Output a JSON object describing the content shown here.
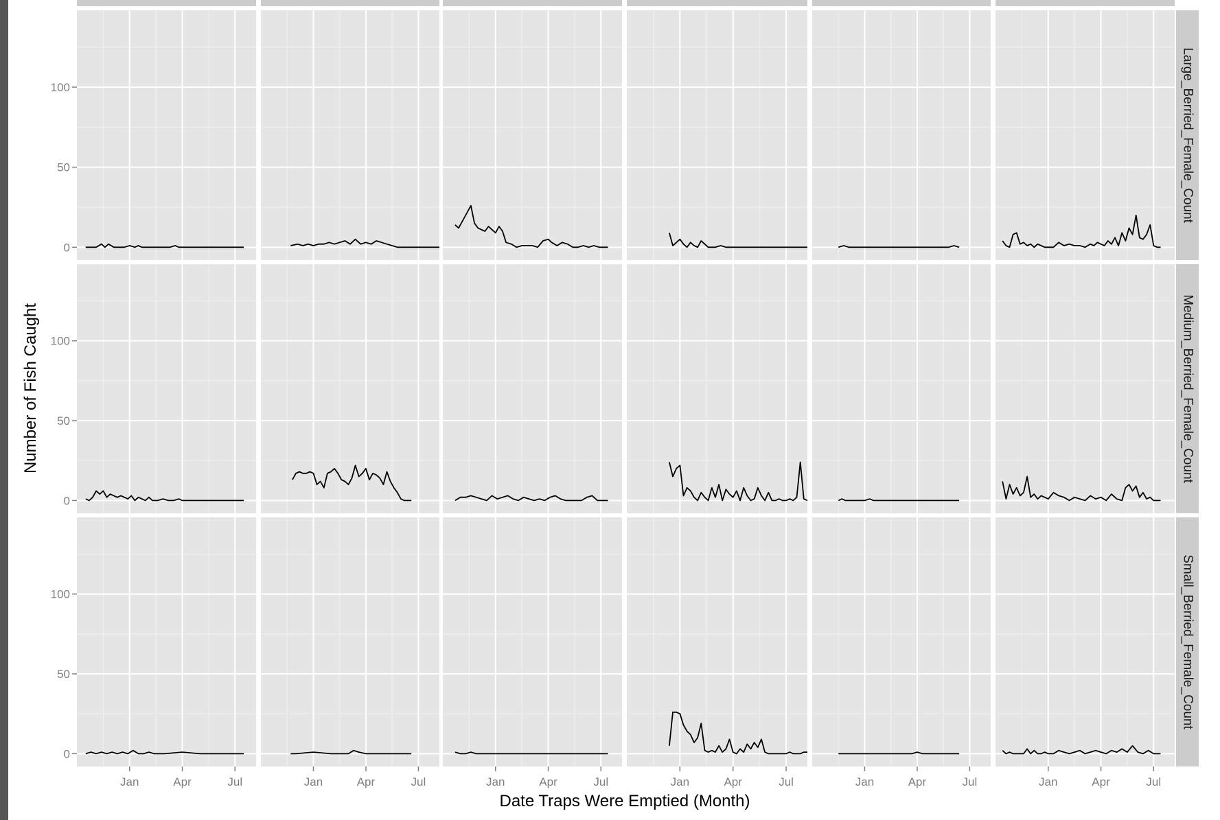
{
  "chart_data": {
    "type": "line",
    "layout": "facet-grid",
    "xlabel": "Date Traps Were Emptied (Month)",
    "ylabel": "Number of Fish Caught",
    "ylim": [
      -8,
      148
    ],
    "y_ticks": [
      0,
      50,
      100
    ],
    "x_ticks": [
      "Jan",
      "Apr",
      "Jul"
    ],
    "x_tick_positions_month": [
      0,
      3,
      6
    ],
    "xlim_month": [
      -3,
      7.2
    ],
    "column_strip_labels": [
      "",
      "",
      "",
      "",
      "",
      ""
    ],
    "row_strip_labels": [
      "Large_Berried_Female_Count",
      "Medium_Berried_Female_Count",
      "Small_Berried_Female_Count"
    ],
    "panels": [
      [
        {
          "x": [
            -2.5,
            -2.2,
            -1.9,
            -1.6,
            -1.4,
            -1.2,
            -0.9,
            -0.6,
            -0.3,
            0,
            0.3,
            0.5,
            0.7,
            1.0,
            1.3,
            1.6,
            2.0,
            2.3,
            2.6,
            2.8,
            3.0,
            4,
            5,
            6,
            6.5
          ],
          "y": [
            0,
            0,
            0,
            2,
            0,
            2,
            0,
            0,
            0,
            1,
            0,
            1,
            0,
            0,
            0,
            0,
            0,
            0,
            1,
            0,
            0,
            0,
            0,
            0,
            0
          ]
        },
        {
          "x": [
            -1.3,
            -0.9,
            -0.6,
            -0.3,
            0,
            0.3,
            0.6,
            0.9,
            1.2,
            1.5,
            1.8,
            2.1,
            2.4,
            2.7,
            3.0,
            3.3,
            3.6,
            3.9,
            4.2,
            4.5,
            4.8,
            5.1,
            5.4,
            5.7,
            6.0,
            6.3,
            6.6,
            6.9,
            7.2
          ],
          "y": [
            1,
            2,
            1,
            2,
            1,
            2,
            2,
            3,
            2,
            3,
            4,
            2,
            5,
            2,
            3,
            2,
            4,
            3,
            2,
            1,
            0,
            0,
            0,
            0,
            0,
            0,
            0,
            0,
            0
          ]
        },
        {
          "x": [
            -2.3,
            -2.1,
            -1.8,
            -1.6,
            -1.4,
            -1.2,
            -1.0,
            -0.8,
            -0.6,
            -0.4,
            -0.2,
            0,
            0.2,
            0.4,
            0.6,
            0.9,
            1.2,
            1.5,
            1.8,
            2.1,
            2.4,
            2.7,
            3.0,
            3.2,
            3.5,
            3.8,
            4.1,
            4.4,
            4.7,
            5.0,
            5.3,
            5.6,
            5.9,
            6.1,
            6.4
          ],
          "y": [
            14,
            12,
            18,
            22,
            26,
            15,
            12,
            11,
            10,
            13,
            11,
            9,
            13,
            10,
            3,
            2,
            0,
            1,
            1,
            1,
            0,
            4,
            5,
            3,
            1,
            3,
            2,
            0,
            0,
            1,
            0,
            1,
            0,
            0,
            0
          ]
        },
        {
          "x": [
            -0.6,
            -0.4,
            -0.2,
            0,
            0.2,
            0.4,
            0.6,
            0.8,
            1.0,
            1.2,
            1.4,
            1.6,
            1.8,
            2.0,
            2.3,
            2.6,
            3,
            4,
            5,
            6,
            7.2
          ],
          "y": [
            9,
            1,
            3,
            5,
            2,
            0,
            3,
            1,
            0,
            4,
            2,
            0,
            0,
            0,
            1,
            0,
            0,
            0,
            0,
            0,
            0
          ]
        },
        {
          "x": [
            -1.5,
            -1.2,
            -0.9,
            0,
            1,
            2,
            3,
            4,
            4.8,
            5.1,
            5.4
          ],
          "y": [
            0,
            1,
            0,
            0,
            0,
            0,
            0,
            0,
            0,
            1,
            0
          ]
        },
        {
          "x": [
            -2.6,
            -2.4,
            -2.2,
            -2.0,
            -1.8,
            -1.6,
            -1.4,
            -1.2,
            -1.0,
            -0.8,
            -0.6,
            -0.4,
            -0.2,
            0,
            0.3,
            0.6,
            0.9,
            1.2,
            1.5,
            1.8,
            2.1,
            2.4,
            2.6,
            2.8,
            3.0,
            3.2,
            3.4,
            3.6,
            3.8,
            4.0,
            4.2,
            4.4,
            4.6,
            4.8,
            5.0,
            5.2,
            5.4,
            5.6,
            5.8,
            6.0,
            6.2,
            6.4
          ],
          "y": [
            4,
            1,
            0,
            8,
            9,
            2,
            3,
            1,
            2,
            0,
            2,
            1,
            0,
            0,
            0,
            3,
            1,
            2,
            1,
            1,
            0,
            2,
            1,
            3,
            2,
            1,
            4,
            2,
            6,
            1,
            9,
            4,
            12,
            8,
            20,
            6,
            5,
            8,
            14,
            1,
            0,
            0
          ]
        }
      ],
      [
        {
          "x": [
            -2.5,
            -2.3,
            -2.1,
            -1.9,
            -1.7,
            -1.5,
            -1.3,
            -1.1,
            -0.9,
            -0.7,
            -0.5,
            -0.3,
            -0.1,
            0.1,
            0.3,
            0.5,
            0.7,
            0.9,
            1.1,
            1.3,
            1.6,
            1.9,
            2.2,
            2.5,
            2.8,
            3.0,
            4,
            5,
            6,
            6.5
          ],
          "y": [
            1,
            0,
            2,
            6,
            4,
            6,
            2,
            4,
            3,
            2,
            3,
            2,
            1,
            3,
            0,
            2,
            1,
            0,
            2,
            0,
            0,
            1,
            0,
            0,
            1,
            0,
            0,
            0,
            0,
            0
          ]
        },
        {
          "x": [
            -1.2,
            -1.0,
            -0.8,
            -0.6,
            -0.4,
            -0.2,
            0,
            0.2,
            0.4,
            0.6,
            0.8,
            1.0,
            1.2,
            1.4,
            1.6,
            1.8,
            2.0,
            2.2,
            2.4,
            2.6,
            2.8,
            3.0,
            3.2,
            3.4,
            3.6,
            3.8,
            4.0,
            4.2,
            4.4,
            4.6,
            4.8,
            5.0,
            5.2,
            5.4,
            5.6
          ],
          "y": [
            13,
            17,
            18,
            17,
            17,
            18,
            17,
            10,
            12,
            8,
            17,
            18,
            20,
            17,
            13,
            12,
            10,
            14,
            22,
            15,
            17,
            20,
            13,
            17,
            16,
            14,
            10,
            18,
            12,
            8,
            5,
            1,
            0,
            0,
            0
          ]
        },
        {
          "x": [
            -2.3,
            -2.0,
            -1.7,
            -1.4,
            -1.1,
            -0.8,
            -0.5,
            -0.2,
            0.1,
            0.4,
            0.7,
            1.0,
            1.3,
            1.6,
            1.9,
            2.2,
            2.5,
            2.8,
            3.1,
            3.4,
            3.7,
            4.0,
            4.3,
            4.6,
            4.9,
            5.2,
            5.5,
            5.8,
            6.1,
            6.4
          ],
          "y": [
            0,
            2,
            2,
            3,
            2,
            1,
            0,
            3,
            1,
            2,
            3,
            1,
            0,
            2,
            1,
            0,
            1,
            0,
            2,
            3,
            1,
            0,
            0,
            0,
            0,
            2,
            3,
            0,
            0,
            0
          ]
        },
        {
          "x": [
            -0.6,
            -0.4,
            -0.2,
            0,
            0.2,
            0.4,
            0.6,
            0.8,
            1.0,
            1.2,
            1.4,
            1.6,
            1.8,
            2.0,
            2.2,
            2.4,
            2.6,
            2.8,
            3.0,
            3.2,
            3.4,
            3.6,
            3.8,
            4.0,
            4.2,
            4.4,
            4.6,
            4.8,
            5.0,
            5.2,
            5.4,
            5.6,
            5.8,
            6.0,
            6.2,
            6.4,
            6.6,
            6.8,
            7.0,
            7.2
          ],
          "y": [
            24,
            15,
            20,
            22,
            3,
            8,
            6,
            2,
            0,
            5,
            2,
            0,
            8,
            2,
            10,
            0,
            7,
            4,
            2,
            6,
            0,
            8,
            3,
            0,
            1,
            8,
            3,
            0,
            5,
            0,
            0,
            1,
            0,
            0,
            1,
            0,
            2,
            24,
            1,
            0
          ]
        },
        {
          "x": [
            -1.5,
            -1.3,
            -1.1,
            -0.5,
            0,
            0.3,
            0.5,
            1,
            2,
            3,
            4,
            5,
            5.4
          ],
          "y": [
            0,
            1,
            0,
            0,
            0,
            1,
            0,
            0,
            0,
            0,
            0,
            0,
            0
          ]
        },
        {
          "x": [
            -2.6,
            -2.4,
            -2.2,
            -2.0,
            -1.8,
            -1.6,
            -1.4,
            -1.2,
            -1.0,
            -0.8,
            -0.6,
            -0.4,
            -0.2,
            0,
            0.3,
            0.6,
            0.9,
            1.2,
            1.5,
            1.8,
            2.1,
            2.4,
            2.7,
            3.0,
            3.3,
            3.6,
            3.9,
            4.2,
            4.4,
            4.6,
            4.8,
            5.0,
            5.2,
            5.4,
            5.6,
            5.8,
            6.0,
            6.2,
            6.4
          ],
          "y": [
            12,
            1,
            10,
            4,
            8,
            3,
            5,
            15,
            2,
            4,
            1,
            3,
            2,
            1,
            5,
            3,
            2,
            0,
            2,
            1,
            0,
            3,
            1,
            2,
            0,
            4,
            1,
            0,
            8,
            10,
            6,
            9,
            2,
            5,
            1,
            2,
            0,
            0,
            0
          ]
        }
      ],
      [
        {
          "x": [
            -2.5,
            -2.2,
            -1.9,
            -1.6,
            -1.3,
            -1.0,
            -0.7,
            -0.4,
            -0.1,
            0.2,
            0.5,
            0.8,
            1.1,
            1.4,
            2,
            3,
            4,
            5,
            6,
            6.5
          ],
          "y": [
            0,
            1,
            0,
            1,
            0,
            1,
            0,
            1,
            0,
            2,
            0,
            0,
            1,
            0,
            0,
            1,
            0,
            0,
            0,
            0
          ]
        },
        {
          "x": [
            -1.3,
            -1,
            0,
            1,
            1.6,
            2.0,
            2.3,
            2.6,
            3,
            4,
            5,
            5.6
          ],
          "y": [
            0,
            0,
            1,
            0,
            0,
            0,
            2,
            1,
            0,
            0,
            0,
            0
          ]
        },
        {
          "x": [
            -2.3,
            -2.0,
            -1.7,
            -1.4,
            -1.1,
            -0.8,
            0,
            1,
            2,
            3,
            4,
            5,
            6,
            6.4
          ],
          "y": [
            1,
            0,
            0,
            1,
            0,
            0,
            0,
            0,
            0,
            0,
            0,
            0,
            0,
            0
          ]
        },
        {
          "x": [
            -0.6,
            -0.4,
            -0.2,
            0,
            0.2,
            0.4,
            0.6,
            0.8,
            1.0,
            1.2,
            1.4,
            1.6,
            1.8,
            2.0,
            2.2,
            2.4,
            2.6,
            2.8,
            3.0,
            3.2,
            3.4,
            3.6,
            3.8,
            4.0,
            4.2,
            4.4,
            4.6,
            4.8,
            5.0,
            5.2,
            5.4,
            5.6,
            5.8,
            6.0,
            6.2,
            6.4,
            6.6,
            6.8,
            7.0,
            7.2
          ],
          "y": [
            5,
            26,
            26,
            25,
            18,
            14,
            12,
            7,
            10,
            19,
            2,
            1,
            2,
            1,
            5,
            1,
            3,
            9,
            1,
            0,
            3,
            1,
            6,
            3,
            7,
            4,
            9,
            1,
            0,
            0,
            0,
            0,
            0,
            0,
            1,
            0,
            0,
            0,
            1,
            1
          ]
        },
        {
          "x": [
            -1.5,
            0,
            1,
            2,
            2.7,
            3.0,
            3.3,
            4,
            5,
            5.4
          ],
          "y": [
            0,
            0,
            0,
            0,
            0,
            1,
            0,
            0,
            0,
            0
          ]
        },
        {
          "x": [
            -2.6,
            -2.4,
            -2.2,
            -2.0,
            -1.8,
            -1.6,
            -1.4,
            -1.2,
            -1.0,
            -0.8,
            -0.6,
            -0.4,
            -0.2,
            0,
            0.3,
            0.6,
            0.9,
            1.2,
            1.5,
            1.8,
            2.1,
            2.4,
            2.7,
            3.0,
            3.3,
            3.6,
            3.9,
            4.2,
            4.5,
            4.8,
            5.1,
            5.4,
            5.7,
            6.0,
            6.4
          ],
          "y": [
            2,
            0,
            1,
            0,
            0,
            0,
            0,
            3,
            0,
            2,
            0,
            0,
            1,
            0,
            0,
            2,
            1,
            0,
            1,
            2,
            0,
            1,
            2,
            1,
            0,
            2,
            1,
            3,
            1,
            5,
            1,
            0,
            2,
            0,
            0
          ]
        }
      ]
    ]
  }
}
